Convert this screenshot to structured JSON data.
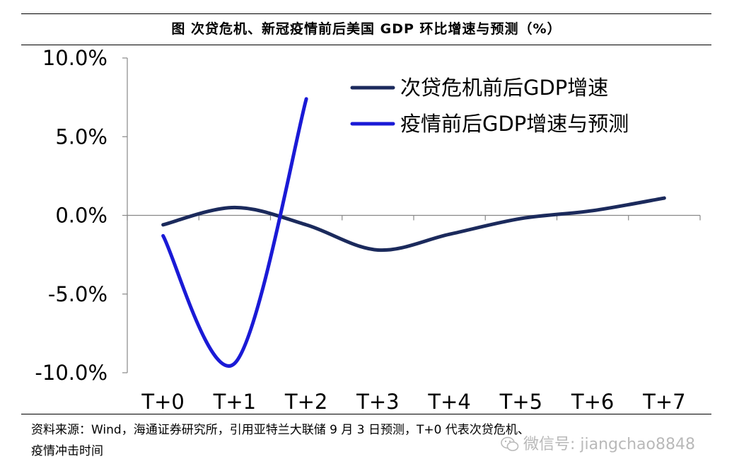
{
  "title": "图  次贷危机、新冠疫情前后美国 GDP 环比增速与预测（%）",
  "source": {
    "line1": "资料来源：Wind，海通证券研究所，引用亚特兰大联储 9 月 3 日预测，T+0 代表次贷危机、",
    "line2": "疫情冲击时间"
  },
  "watermark": {
    "text": "微信号: jiangchao8848",
    "icon": "wechat-icon",
    "color": "#b9b9b9"
  },
  "chart_data": {
    "type": "line",
    "categories": [
      "T+0",
      "T+1",
      "T+2",
      "T+3",
      "T+4",
      "T+5",
      "T+6",
      "T+7"
    ],
    "ylim": [
      -10,
      10
    ],
    "yticks": [
      10,
      5,
      0,
      -5,
      -10
    ],
    "ytick_labels": [
      "10.0%",
      "5.0%",
      "0.0%",
      "-5.0%",
      "-10.0%"
    ],
    "legend_position": "top-right",
    "grid": false,
    "series": [
      {
        "name": "次贷危机前后GDP增速",
        "color": "#1b2a5c",
        "x": [
          0,
          1,
          2,
          3,
          4,
          5,
          6,
          7
        ],
        "values": [
          -0.6,
          0.5,
          -0.6,
          -2.2,
          -1.2,
          -0.2,
          0.3,
          1.1
        ]
      },
      {
        "name": "疫情前后GDP增速与预测",
        "color": "#1a1ad6",
        "x": [
          0,
          1,
          2
        ],
        "values": [
          -1.3,
          -9.4,
          7.4
        ]
      }
    ]
  }
}
